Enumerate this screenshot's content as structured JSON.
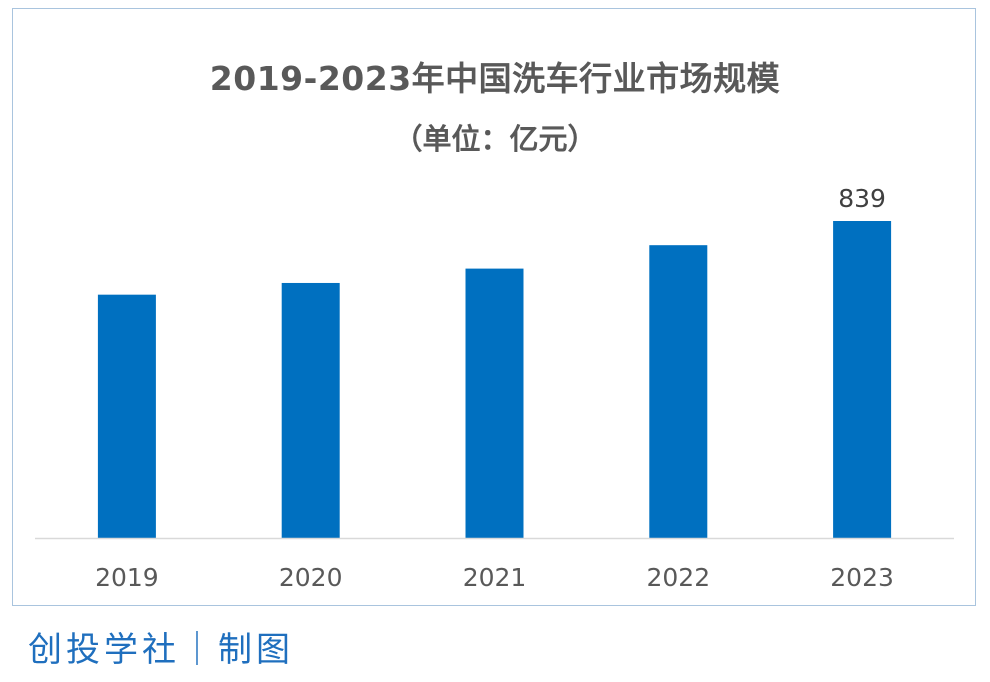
{
  "chart_data": {
    "type": "bar",
    "title": "2019-2023年中国洗车行业市场规模",
    "subtitle": "（单位：亿元）",
    "categories": [
      "2019",
      "2020",
      "2021",
      "2022",
      "2023"
    ],
    "values": [
      644,
      675,
      713,
      775,
      839
    ],
    "data_labels": [
      null,
      null,
      null,
      null,
      "839"
    ],
    "xlabel": "",
    "ylabel": "",
    "ylim": [
      0,
      1000
    ],
    "grid": false,
    "legend": "none",
    "bar_color": "#0070c0",
    "axis_color": "#d9d9d9"
  },
  "source": "创投学社｜制图"
}
